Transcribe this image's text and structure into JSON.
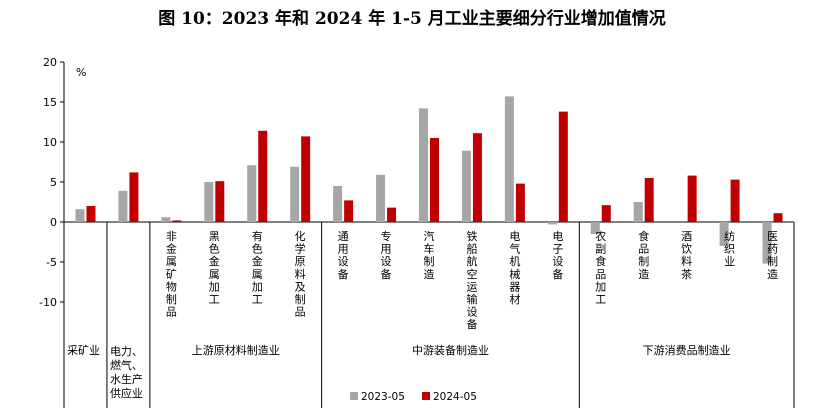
{
  "chart_data": {
    "type": "bar",
    "title": "图 10：2023 年和 2024 年 1-5 月工业主要细分行业增加值情况",
    "yunit": "%",
    "ylim": [
      -10,
      20
    ],
    "yticks": [
      -10,
      -5,
      0,
      5,
      10,
      15,
      20
    ],
    "grid": false,
    "legend_position": "bottom",
    "colors": {
      "2023-05": "#a6a6a6",
      "2024-05": "#c00000"
    },
    "categories": [
      "采矿业",
      "电力、燃气、水生产供应业",
      "非金属矿物制品",
      "黑色金属加工",
      "有色金属加工",
      "化学原料及制品",
      "通用设备",
      "专用设备",
      "汽车制造",
      "铁船航空运输设备",
      "电气机械器材",
      "电子设备",
      "农副食品加工",
      "食品制造",
      "酒饮料茶",
      "纺织业",
      "医药制造"
    ],
    "series": [
      {
        "name": "2023-05",
        "values": [
          1.6,
          3.9,
          0.6,
          5.0,
          7.1,
          6.9,
          4.5,
          5.9,
          14.2,
          8.9,
          15.7,
          -0.3,
          -1.5,
          2.5,
          0.0,
          -3.0,
          -5.2
        ]
      },
      {
        "name": "2024-05",
        "values": [
          2.0,
          6.2,
          0.2,
          5.1,
          11.4,
          10.7,
          2.7,
          1.8,
          10.5,
          11.1,
          4.8,
          13.8,
          2.1,
          5.5,
          5.8,
          5.3,
          1.1
        ]
      }
    ],
    "groups": [
      {
        "label": "采矿业",
        "count": 1
      },
      {
        "label": "电力、燃气、水生产供应业",
        "count": 1
      },
      {
        "label": "上游原材料制造业",
        "count": 4
      },
      {
        "label": "中游装备制造业",
        "count": 6
      },
      {
        "label": "下游消费品制造业",
        "count": 5
      }
    ]
  }
}
